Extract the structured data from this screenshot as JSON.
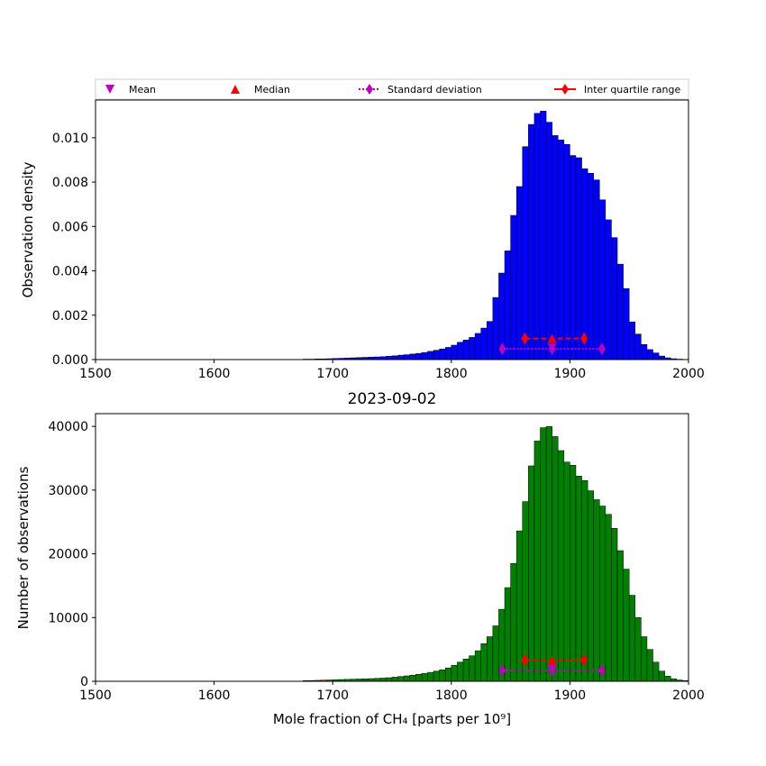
{
  "chart_data": [
    {
      "type": "bar",
      "panel": "top",
      "title": "",
      "xlabel": "",
      "ylabel": "Observation density",
      "xlim": [
        1500,
        2000
      ],
      "ylim": [
        0,
        0.0117
      ],
      "xticks": [
        "1500",
        "1600",
        "1700",
        "1800",
        "1900",
        "2000"
      ],
      "yticks": [
        "0.000",
        "0.002",
        "0.004",
        "0.006",
        "0.008",
        "0.010"
      ],
      "bar_color": "#0000ff",
      "bin_width": 5,
      "x": [
        1670,
        1675,
        1680,
        1685,
        1690,
        1695,
        1700,
        1705,
        1710,
        1715,
        1720,
        1725,
        1730,
        1735,
        1740,
        1745,
        1750,
        1755,
        1760,
        1765,
        1770,
        1775,
        1780,
        1785,
        1790,
        1795,
        1800,
        1805,
        1810,
        1815,
        1820,
        1825,
        1830,
        1835,
        1840,
        1845,
        1850,
        1855,
        1860,
        1865,
        1870,
        1875,
        1880,
        1885,
        1890,
        1895,
        1900,
        1905,
        1910,
        1915,
        1920,
        1925,
        1930,
        1935,
        1940,
        1945,
        1950,
        1955,
        1960,
        1965,
        1970,
        1975,
        1980,
        1985,
        1990,
        1995
      ],
      "values": [
        1e-05,
        2e-05,
        2e-05,
        3e-05,
        3e-05,
        4e-05,
        5e-05,
        6e-05,
        7e-05,
        8e-05,
        9e-05,
        0.0001,
        0.00011,
        0.00012,
        0.00013,
        0.00015,
        0.00017,
        0.0002,
        0.00022,
        0.00025,
        0.00028,
        0.00032,
        0.00037,
        0.00042,
        0.00048,
        0.00055,
        0.00065,
        0.00078,
        0.00088,
        0.001,
        0.00118,
        0.00142,
        0.00172,
        0.0028,
        0.0039,
        0.0049,
        0.0065,
        0.0078,
        0.0096,
        0.0106,
        0.0111,
        0.0112,
        0.0107,
        0.0101,
        0.0099,
        0.0097,
        0.0092,
        0.0091,
        0.0086,
        0.0084,
        0.0081,
        0.0072,
        0.0063,
        0.0055,
        0.0043,
        0.0032,
        0.0017,
        0.00115,
        0.00068,
        0.00045,
        0.0003,
        0.00016,
        8e-05,
        4e-05,
        2e-05,
        1e-05
      ],
      "stats": {
        "mean": 1885,
        "median": 1885,
        "std_range": [
          1843,
          1927
        ],
        "iqr_range": [
          1862,
          1912
        ],
        "iqr_y": 0.00095,
        "std_y": 0.00048
      }
    },
    {
      "type": "bar",
      "panel": "bottom",
      "title": "2023-09-02",
      "xlabel": "Mole fraction of CH₄ [parts per 10⁹]",
      "ylabel": "Number of observations",
      "xlim": [
        1500,
        2000
      ],
      "ylim": [
        0,
        42000
      ],
      "xticks": [
        "1500",
        "1600",
        "1700",
        "1800",
        "1900",
        "2000"
      ],
      "yticks": [
        "0",
        "10000",
        "20000",
        "30000",
        "40000"
      ],
      "bar_color": "#008000",
      "bin_width": 5,
      "x": [
        1675,
        1680,
        1685,
        1690,
        1695,
        1700,
        1705,
        1710,
        1715,
        1720,
        1725,
        1730,
        1735,
        1740,
        1745,
        1750,
        1755,
        1760,
        1765,
        1770,
        1775,
        1780,
        1785,
        1790,
        1795,
        1800,
        1805,
        1810,
        1815,
        1820,
        1825,
        1830,
        1835,
        1840,
        1845,
        1850,
        1855,
        1860,
        1865,
        1870,
        1875,
        1880,
        1885,
        1890,
        1895,
        1900,
        1905,
        1910,
        1915,
        1920,
        1925,
        1930,
        1935,
        1940,
        1945,
        1950,
        1955,
        1960,
        1965,
        1970,
        1975,
        1980,
        1985,
        1990,
        1995
      ],
      "values": [
        100,
        120,
        150,
        180,
        210,
        250,
        280,
        300,
        330,
        360,
        390,
        420,
        460,
        500,
        560,
        650,
        750,
        850,
        950,
        1100,
        1250,
        1400,
        1600,
        1800,
        2100,
        2500,
        3000,
        3500,
        4000,
        4800,
        5900,
        7000,
        8700,
        11300,
        14700,
        18500,
        23600,
        28200,
        33800,
        37700,
        39800,
        40000,
        38400,
        36200,
        34400,
        33900,
        32200,
        31500,
        29900,
        28500,
        27500,
        26200,
        24000,
        20500,
        17600,
        13500,
        10000,
        7000,
        5000,
        3000,
        1600,
        800,
        400,
        200,
        100
      ],
      "stats": {
        "mean": 1885,
        "median": 1885,
        "std_range": [
          1843,
          1927
        ],
        "iqr_range": [
          1862,
          1912
        ],
        "iqr_y": 3300,
        "std_y": 1700
      }
    }
  ],
  "legend": {
    "placement": "top",
    "items": [
      {
        "label": "Mean",
        "marker": "triangle-down",
        "color": "#bf00bf"
      },
      {
        "label": "Median",
        "marker": "triangle-up",
        "color": "#ff0000"
      },
      {
        "label": "Standard deviation",
        "marker": "diamond",
        "color": "#bf00bf"
      },
      {
        "label": "Inter quartile range",
        "marker": "diamond",
        "color": "#ff0000"
      }
    ]
  }
}
